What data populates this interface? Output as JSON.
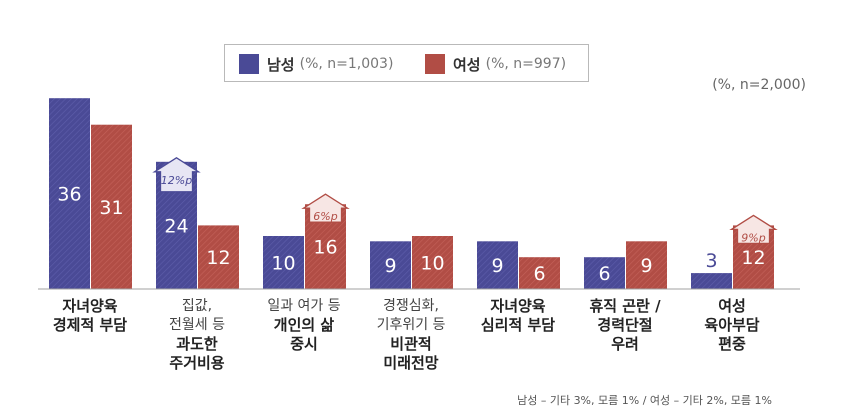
{
  "chart_data": {
    "type": "bar",
    "sample_note": "(%, n=2,000)",
    "series": [
      {
        "name": "남성",
        "sub": "(%, n=1,003)",
        "color": "#4a4a96",
        "values": [
          36,
          24,
          10,
          9,
          9,
          6,
          3
        ]
      },
      {
        "name": "여성",
        "sub": "(%, n=997)",
        "color": "#b14d45",
        "values": [
          31,
          12,
          16,
          10,
          6,
          9,
          12
        ]
      }
    ],
    "categories": [
      {
        "lines": [
          {
            "text": "자녀양육",
            "bold": true
          },
          {
            "text": "경제적 부담",
            "bold": true
          }
        ]
      },
      {
        "lines": [
          {
            "text": "집값,",
            "bold": false
          },
          {
            "text": "전월세 등",
            "bold": false
          },
          {
            "text": "과도한",
            "bold": true
          },
          {
            "text": "주거비용",
            "bold": true
          }
        ]
      },
      {
        "lines": [
          {
            "text": "일과 여가 등",
            "bold": false
          },
          {
            "text": "개인의 삶",
            "bold": true
          },
          {
            "text": "중시",
            "bold": true
          }
        ]
      },
      {
        "lines": [
          {
            "text": "경쟁심화,",
            "bold": false
          },
          {
            "text": "기후위기 등",
            "bold": false
          },
          {
            "text": "비관적",
            "bold": true
          },
          {
            "text": "미래전망",
            "bold": true
          }
        ]
      },
      {
        "lines": [
          {
            "text": "자녀양육",
            "bold": true
          },
          {
            "text": "심리적 부담",
            "bold": true
          }
        ]
      },
      {
        "lines": [
          {
            "text": "휴직 곤란 /",
            "bold": true
          },
          {
            "text": "경력단절",
            "bold": true
          },
          {
            "text": "우려",
            "bold": true
          }
        ]
      },
      {
        "lines": [
          {
            "text": "여성",
            "bold": true
          },
          {
            "text": "육아부담",
            "bold": true
          },
          {
            "text": "편중",
            "bold": true
          }
        ]
      }
    ],
    "annotations": [
      {
        "category": 1,
        "series": 0,
        "label": "12%p"
      },
      {
        "category": 2,
        "series": 1,
        "label": "6%p"
      },
      {
        "category": 6,
        "series": 1,
        "label": "9%p"
      }
    ],
    "footnote": "남성 – 기타 3%, 모름 1% / 여성 – 기타 2%, 모름 1%"
  }
}
